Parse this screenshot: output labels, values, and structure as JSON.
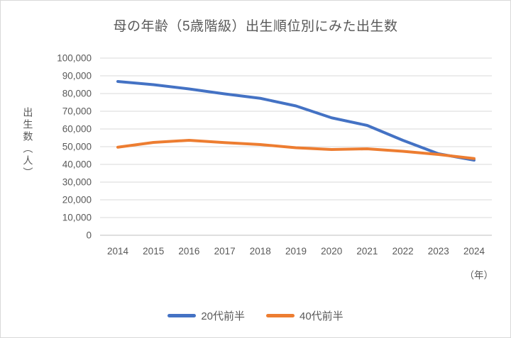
{
  "window": {
    "background": "#ffffff",
    "border_color": "#d9d9d9"
  },
  "chart_data": {
    "type": "line",
    "title": "母の年齢（5歳階級）出生順位別にみた出生数",
    "ylabel": "出生数（人）",
    "xlabel": "",
    "x_unit_label": "（年）",
    "categories": [
      "2014",
      "2015",
      "2016",
      "2017",
      "2018",
      "2019",
      "2020",
      "2021",
      "2022",
      "2023",
      "2024"
    ],
    "series": [
      {
        "name": "20代前半",
        "color": "#4472C4",
        "values": [
          86800,
          85000,
          82600,
          79800,
          77300,
          73000,
          66300,
          62000,
          53600,
          46000,
          42400
        ]
      },
      {
        "name": "40代前半",
        "color": "#ED7D31",
        "values": [
          49700,
          52400,
          53600,
          52300,
          51200,
          49400,
          48400,
          48800,
          47400,
          45600,
          43300
        ]
      }
    ],
    "ylim": [
      0,
      100000
    ],
    "y_ticks": {
      "values": [
        0,
        10000,
        20000,
        30000,
        40000,
        50000,
        60000,
        70000,
        80000,
        90000,
        100000
      ],
      "labels": [
        "0",
        "10,000",
        "20,000",
        "30,000",
        "40,000",
        "50,000",
        "60,000",
        "70,000",
        "80,000",
        "90,000",
        "100,000"
      ]
    },
    "grid": "horizontal",
    "legend_position": "bottom",
    "gridline_color": "#d9d9d9",
    "axis_line_color": "#bfbfbf",
    "text_color": "#595959",
    "line_width": 4
  }
}
